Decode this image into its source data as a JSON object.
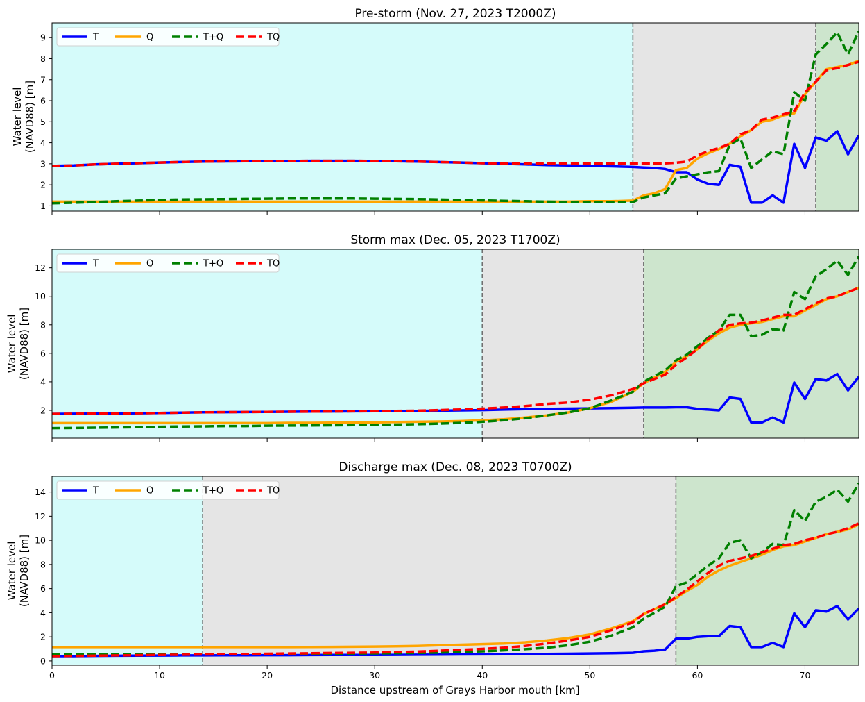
{
  "figure": {
    "xlabel": "Distance upstream of Grays Harbor mouth [km]",
    "ylabel_line1": "Water level",
    "ylabel_line2": "(NAVD88) [m]"
  },
  "chart_data": [
    {
      "type": "line",
      "title": "Pre-storm (Nov. 27, 2023 T2000Z)",
      "xlabel": "",
      "ylabel": "Water level (NAVD88) [m]",
      "xlim": [
        0,
        75
      ],
      "ylim": [
        0.75,
        9.7
      ],
      "xticks": [
        0,
        10,
        20,
        30,
        40,
        50,
        60,
        70
      ],
      "yticks": [
        1,
        2,
        3,
        4,
        5,
        6,
        7,
        8,
        9
      ],
      "show_xticklabels": false,
      "regions": [
        {
          "from": 0,
          "to": 54,
          "color": "#d5fbfa"
        },
        {
          "from": 54,
          "to": 71,
          "color": "#e5e5e5"
        },
        {
          "from": 71,
          "to": 75,
          "color": "#cde5cd"
        }
      ],
      "vlines": [
        54,
        71
      ],
      "x": [
        0,
        2,
        4,
        6,
        8,
        10,
        12,
        14,
        16,
        18,
        20,
        22,
        24,
        26,
        28,
        30,
        32,
        34,
        36,
        38,
        40,
        42,
        44,
        46,
        48,
        50,
        52,
        54,
        55,
        56,
        57,
        58,
        59,
        60,
        61,
        62,
        63,
        64,
        65,
        66,
        67,
        68,
        69,
        70,
        71,
        72,
        73,
        74,
        75
      ],
      "series": [
        {
          "name": "T",
          "color": "#0000ff",
          "dash": "solid",
          "values": [
            2.9,
            2.92,
            2.97,
            3.0,
            3.03,
            3.06,
            3.08,
            3.1,
            3.11,
            3.12,
            3.12,
            3.13,
            3.14,
            3.14,
            3.14,
            3.13,
            3.12,
            3.1,
            3.08,
            3.06,
            3.03,
            3.0,
            2.97,
            2.94,
            2.92,
            2.9,
            2.88,
            2.85,
            2.82,
            2.8,
            2.75,
            2.6,
            2.6,
            2.25,
            2.05,
            2.0,
            2.95,
            2.85,
            1.15,
            1.15,
            1.5,
            1.15,
            3.95,
            2.8,
            4.25,
            4.1,
            4.55,
            3.45,
            4.35
          ]
        },
        {
          "name": "Q",
          "color": "#ffa500",
          "dash": "solid",
          "values": [
            1.2,
            1.2,
            1.2,
            1.2,
            1.2,
            1.2,
            1.2,
            1.2,
            1.2,
            1.2,
            1.2,
            1.2,
            1.2,
            1.2,
            1.2,
            1.2,
            1.2,
            1.2,
            1.2,
            1.2,
            1.2,
            1.2,
            1.2,
            1.2,
            1.2,
            1.22,
            1.22,
            1.25,
            1.5,
            1.6,
            1.8,
            2.7,
            2.8,
            3.25,
            3.5,
            3.7,
            3.95,
            4.3,
            4.6,
            5.0,
            5.1,
            5.3,
            5.4,
            6.3,
            6.9,
            7.5,
            7.6,
            7.7,
            7.9
          ]
        },
        {
          "name": "T+Q",
          "color": "#008000",
          "dash": "dashed",
          "values": [
            1.12,
            1.15,
            1.18,
            1.22,
            1.25,
            1.28,
            1.3,
            1.31,
            1.32,
            1.33,
            1.34,
            1.35,
            1.35,
            1.35,
            1.35,
            1.34,
            1.33,
            1.32,
            1.3,
            1.28,
            1.26,
            1.24,
            1.22,
            1.2,
            1.18,
            1.18,
            1.17,
            1.18,
            1.4,
            1.5,
            1.6,
            2.3,
            2.4,
            2.5,
            2.6,
            2.65,
            3.9,
            4.2,
            2.8,
            3.2,
            3.6,
            3.45,
            6.4,
            6.0,
            8.2,
            8.7,
            9.25,
            8.2,
            9.3
          ]
        },
        {
          "name": "TQ",
          "color": "#ff0000",
          "dash": "dashed",
          "values": [
            2.9,
            2.92,
            2.97,
            3.0,
            3.03,
            3.06,
            3.08,
            3.1,
            3.11,
            3.12,
            3.12,
            3.13,
            3.14,
            3.14,
            3.14,
            3.13,
            3.12,
            3.1,
            3.08,
            3.06,
            3.03,
            3.02,
            3.02,
            3.02,
            3.02,
            3.02,
            3.02,
            3.02,
            3.02,
            3.02,
            3.02,
            3.05,
            3.1,
            3.4,
            3.6,
            3.75,
            3.95,
            4.4,
            4.6,
            5.1,
            5.2,
            5.35,
            5.5,
            6.4,
            6.9,
            7.45,
            7.55,
            7.7,
            7.85
          ]
        }
      ]
    },
    {
      "type": "line",
      "title": "Storm max (Dec. 05, 2023 T1700Z)",
      "xlabel": "",
      "ylabel": "Water level (NAVD88) [m]",
      "xlim": [
        0,
        75
      ],
      "ylim": [
        0.05,
        13.3
      ],
      "xticks": [
        0,
        10,
        20,
        30,
        40,
        50,
        60,
        70
      ],
      "yticks": [
        2,
        4,
        6,
        8,
        10,
        12
      ],
      "show_xticklabels": false,
      "regions": [
        {
          "from": 0,
          "to": 40,
          "color": "#d5fbfa"
        },
        {
          "from": 40,
          "to": 55,
          "color": "#e5e5e5"
        },
        {
          "from": 55,
          "to": 75,
          "color": "#cde5cd"
        }
      ],
      "vlines": [
        40,
        55
      ],
      "x": [
        0,
        2,
        4,
        6,
        8,
        10,
        12,
        14,
        16,
        18,
        20,
        22,
        24,
        26,
        28,
        30,
        32,
        34,
        36,
        38,
        40,
        42,
        44,
        46,
        48,
        50,
        52,
        54,
        55,
        56,
        57,
        58,
        59,
        60,
        61,
        62,
        63,
        64,
        65,
        66,
        67,
        68,
        69,
        70,
        71,
        72,
        73,
        74,
        75
      ],
      "series": [
        {
          "name": "T",
          "color": "#0000ff",
          "dash": "solid",
          "values": [
            1.75,
            1.76,
            1.77,
            1.78,
            1.8,
            1.82,
            1.84,
            1.86,
            1.87,
            1.88,
            1.89,
            1.9,
            1.91,
            1.92,
            1.93,
            1.94,
            1.95,
            1.96,
            1.98,
            2.0,
            2.02,
            2.05,
            2.08,
            2.1,
            2.12,
            2.14,
            2.16,
            2.18,
            2.2,
            2.2,
            2.2,
            2.22,
            2.22,
            2.1,
            2.05,
            2.0,
            2.9,
            2.8,
            1.15,
            1.15,
            1.5,
            1.15,
            3.95,
            2.8,
            4.2,
            4.1,
            4.55,
            3.4,
            4.35
          ]
        },
        {
          "name": "Q",
          "color": "#ffa500",
          "dash": "solid",
          "values": [
            1.1,
            1.1,
            1.1,
            1.1,
            1.1,
            1.1,
            1.1,
            1.1,
            1.1,
            1.1,
            1.1,
            1.12,
            1.12,
            1.13,
            1.14,
            1.15,
            1.18,
            1.2,
            1.22,
            1.25,
            1.3,
            1.38,
            1.5,
            1.65,
            1.85,
            2.15,
            2.6,
            3.3,
            3.9,
            4.3,
            4.7,
            5.4,
            5.8,
            6.3,
            6.9,
            7.4,
            7.8,
            8.0,
            8.1,
            8.2,
            8.4,
            8.6,
            8.6,
            9.0,
            9.4,
            9.8,
            10.0,
            10.3,
            10.6
          ]
        },
        {
          "name": "T+Q",
          "color": "#008000",
          "dash": "dashed",
          "values": [
            0.75,
            0.76,
            0.78,
            0.8,
            0.82,
            0.85,
            0.87,
            0.88,
            0.9,
            0.9,
            0.92,
            0.93,
            0.94,
            0.95,
            0.96,
            0.98,
            1.0,
            1.03,
            1.07,
            1.12,
            1.2,
            1.3,
            1.45,
            1.65,
            1.85,
            2.15,
            2.7,
            3.3,
            4.0,
            4.4,
            4.8,
            5.5,
            5.9,
            6.5,
            7.1,
            7.6,
            8.7,
            8.7,
            7.2,
            7.3,
            7.7,
            7.6,
            10.3,
            9.8,
            11.4,
            11.9,
            12.5,
            11.5,
            12.8
          ]
        },
        {
          "name": "TQ",
          "color": "#ff0000",
          "dash": "dashed",
          "values": [
            1.75,
            1.76,
            1.77,
            1.78,
            1.8,
            1.82,
            1.84,
            1.86,
            1.87,
            1.88,
            1.89,
            1.9,
            1.91,
            1.92,
            1.93,
            1.94,
            1.96,
            1.98,
            2.02,
            2.06,
            2.12,
            2.2,
            2.3,
            2.45,
            2.55,
            2.75,
            3.05,
            3.5,
            3.9,
            4.2,
            4.5,
            5.2,
            5.7,
            6.3,
            7.0,
            7.6,
            8.0,
            8.1,
            8.15,
            8.3,
            8.5,
            8.7,
            8.7,
            9.1,
            9.5,
            9.85,
            10.0,
            10.3,
            10.6
          ]
        }
      ]
    },
    {
      "type": "line",
      "title": "Discharge max (Dec. 08, 2023 T0700Z)",
      "xlabel": "Distance upstream of Grays Harbor mouth [km]",
      "ylabel": "Water level (NAVD88) [m]",
      "xlim": [
        0,
        75
      ],
      "ylim": [
        -0.35,
        15.3
      ],
      "xticks": [
        0,
        10,
        20,
        30,
        40,
        50,
        60,
        70
      ],
      "yticks": [
        0,
        2,
        4,
        6,
        8,
        10,
        12,
        14
      ],
      "show_xticklabels": true,
      "regions": [
        {
          "from": 0,
          "to": 14,
          "color": "#d5fbfa"
        },
        {
          "from": 14,
          "to": 58,
          "color": "#e5e5e5"
        },
        {
          "from": 58,
          "to": 75,
          "color": "#cde5cd"
        }
      ],
      "vlines": [
        14,
        58
      ],
      "x": [
        0,
        2,
        4,
        6,
        8,
        10,
        12,
        14,
        16,
        18,
        20,
        22,
        24,
        26,
        28,
        30,
        32,
        34,
        36,
        38,
        40,
        42,
        44,
        46,
        48,
        50,
        52,
        54,
        55,
        56,
        57,
        58,
        59,
        60,
        61,
        62,
        63,
        64,
        65,
        66,
        67,
        68,
        69,
        70,
        71,
        72,
        73,
        74,
        75
      ],
      "series": [
        {
          "name": "T",
          "color": "#0000ff",
          "dash": "solid",
          "values": [
            0.4,
            0.4,
            0.42,
            0.43,
            0.44,
            0.45,
            0.46,
            0.46,
            0.47,
            0.47,
            0.48,
            0.48,
            0.49,
            0.5,
            0.5,
            0.5,
            0.51,
            0.52,
            0.53,
            0.54,
            0.55,
            0.56,
            0.57,
            0.58,
            0.6,
            0.62,
            0.64,
            0.68,
            0.8,
            0.85,
            0.95,
            1.85,
            1.85,
            2.0,
            2.05,
            2.05,
            2.9,
            2.8,
            1.15,
            1.15,
            1.5,
            1.15,
            3.95,
            2.8,
            4.2,
            4.1,
            4.55,
            3.45,
            4.35
          ]
        },
        {
          "name": "Q",
          "color": "#ffa500",
          "dash": "solid",
          "values": [
            1.15,
            1.15,
            1.15,
            1.15,
            1.15,
            1.15,
            1.15,
            1.15,
            1.15,
            1.15,
            1.15,
            1.15,
            1.16,
            1.17,
            1.18,
            1.2,
            1.22,
            1.25,
            1.3,
            1.35,
            1.4,
            1.45,
            1.55,
            1.7,
            1.9,
            2.2,
            2.7,
            3.3,
            3.9,
            4.3,
            4.7,
            5.2,
            5.8,
            6.3,
            7.0,
            7.5,
            7.9,
            8.2,
            8.5,
            8.8,
            9.2,
            9.5,
            9.6,
            9.9,
            10.2,
            10.5,
            10.7,
            10.9,
            11.3
          ]
        },
        {
          "name": "T+Q",
          "color": "#008000",
          "dash": "dashed",
          "values": [
            0.55,
            0.55,
            0.55,
            0.56,
            0.56,
            0.56,
            0.57,
            0.57,
            0.58,
            0.58,
            0.58,
            0.59,
            0.6,
            0.6,
            0.62,
            0.63,
            0.65,
            0.67,
            0.7,
            0.75,
            0.8,
            0.88,
            0.98,
            1.1,
            1.3,
            1.6,
            2.1,
            2.8,
            3.5,
            4.0,
            4.5,
            6.2,
            6.5,
            7.2,
            7.9,
            8.5,
            9.8,
            10.0,
            8.5,
            9.0,
            9.7,
            9.6,
            12.5,
            11.6,
            13.2,
            13.6,
            14.2,
            13.2,
            14.7
          ]
        },
        {
          "name": "TQ",
          "color": "#ff0000",
          "dash": "dashed",
          "values": [
            0.4,
            0.42,
            0.44,
            0.46,
            0.48,
            0.5,
            0.52,
            0.54,
            0.56,
            0.58,
            0.6,
            0.62,
            0.64,
            0.66,
            0.68,
            0.7,
            0.74,
            0.78,
            0.85,
            0.92,
            1.0,
            1.1,
            1.25,
            1.45,
            1.7,
            2.0,
            2.55,
            3.2,
            3.9,
            4.3,
            4.7,
            5.3,
            5.9,
            6.6,
            7.3,
            7.9,
            8.3,
            8.5,
            8.7,
            9.0,
            9.3,
            9.6,
            9.7,
            10.0,
            10.2,
            10.5,
            10.7,
            11.0,
            11.4
          ]
        }
      ]
    }
  ]
}
